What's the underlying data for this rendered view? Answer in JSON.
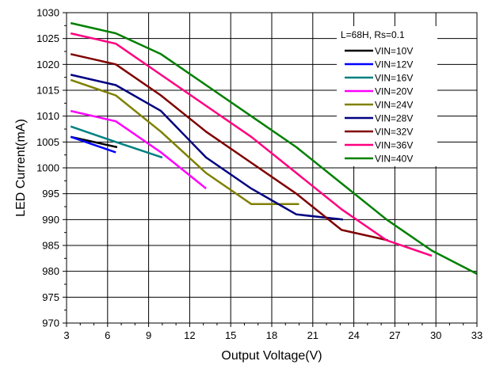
{
  "chart_data": {
    "type": "line",
    "xlabel": "Output Voltage(V)",
    "ylabel": "LED Current(mA)",
    "xlim": [
      3,
      33
    ],
    "ylim": [
      970,
      1030
    ],
    "x_ticks": [
      3,
      6,
      9,
      12,
      15,
      18,
      21,
      24,
      27,
      30,
      33
    ],
    "y_ticks": [
      970,
      975,
      980,
      985,
      990,
      995,
      1000,
      1005,
      1010,
      1015,
      1020,
      1025,
      1030
    ],
    "x_tick_labels": [
      "3",
      "6",
      "9",
      "12",
      "15",
      "18",
      "21",
      "24",
      "27",
      "30",
      "33"
    ],
    "y_tick_labels": [
      "970",
      "975",
      "980",
      "985",
      "990",
      "995",
      "1000",
      "1005",
      "1010",
      "1015",
      "1020",
      "1025",
      "1030"
    ],
    "grid": true,
    "legend_position": "top-right",
    "legend_title": "L=68H, Rs=0.1",
    "series": [
      {
        "name": "VIN=10V",
        "color": "#000000",
        "x": [
          3.3,
          6.7
        ],
        "y": [
          1006,
          1004
        ]
      },
      {
        "name": "VIN=12V",
        "color": "#0000ff",
        "x": [
          3.3,
          6.6
        ],
        "y": [
          1006,
          1003
        ]
      },
      {
        "name": "VIN=16V",
        "color": "#008080",
        "x": [
          3.3,
          6.6,
          10.0
        ],
        "y": [
          1008,
          1005,
          1002
        ]
      },
      {
        "name": "VIN=20V",
        "color": "#ff00ff",
        "x": [
          3.3,
          6.6,
          9.9,
          13.2
        ],
        "y": [
          1011,
          1009,
          1003,
          996
        ]
      },
      {
        "name": "VIN=24V",
        "color": "#808000",
        "x": [
          3.3,
          6.6,
          9.9,
          13.2,
          16.5,
          20.0
        ],
        "y": [
          1017,
          1014,
          1007,
          999,
          993,
          993
        ]
      },
      {
        "name": "VIN=28V",
        "color": "#000080",
        "x": [
          3.3,
          6.6,
          9.9,
          13.2,
          16.5,
          19.8,
          23.2
        ],
        "y": [
          1018,
          1016,
          1011,
          1002,
          996,
          991,
          990
        ]
      },
      {
        "name": "VIN=32V",
        "color": "#800000",
        "x": [
          3.3,
          6.6,
          9.9,
          13.2,
          16.5,
          19.8,
          23.1,
          26.5
        ],
        "y": [
          1022,
          1020,
          1014,
          1007,
          1001,
          995,
          988,
          986
        ]
      },
      {
        "name": "VIN=36V",
        "color": "#ff0080",
        "x": [
          3.3,
          6.6,
          9.9,
          13.2,
          16.5,
          19.8,
          23.1,
          26.4,
          29.7
        ],
        "y": [
          1026,
          1024,
          1018,
          1012,
          1006,
          999,
          992,
          986,
          983
        ]
      },
      {
        "name": "VIN=40V",
        "color": "#008000",
        "x": [
          3.3,
          6.6,
          9.9,
          13.2,
          16.5,
          19.8,
          23.1,
          26.4,
          29.7,
          33.0
        ],
        "y": [
          1028,
          1026,
          1022,
          1016,
          1010,
          1004,
          997,
          990,
          984,
          979.5
        ]
      }
    ]
  }
}
